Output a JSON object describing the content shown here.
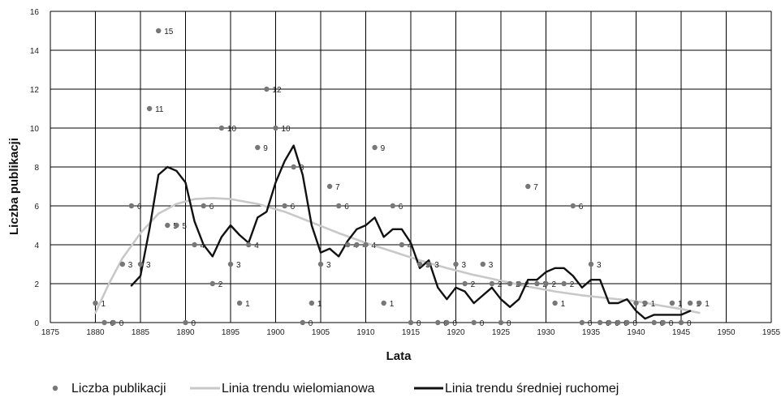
{
  "chart_data": {
    "type": "scatter",
    "xlabel": "Lata",
    "ylabel": "Liczba publikacji",
    "xlim": [
      1875,
      1955
    ],
    "ylim": [
      0,
      16
    ],
    "x_ticks": [
      1875,
      1880,
      1885,
      1890,
      1895,
      1900,
      1905,
      1910,
      1915,
      1920,
      1925,
      1930,
      1935,
      1940,
      1945,
      1950,
      1955
    ],
    "y_ticks": [
      0,
      2,
      4,
      6,
      8,
      10,
      12,
      14,
      16
    ],
    "grid": true,
    "legend_position": "bottom",
    "series": [
      {
        "name": "Liczba publikacji",
        "kind": "points",
        "color": "#777777",
        "points": [
          [
            1880,
            1
          ],
          [
            1881,
            0
          ],
          [
            1882,
            0
          ],
          [
            1883,
            3
          ],
          [
            1884,
            6
          ],
          [
            1885,
            3
          ],
          [
            1886,
            11
          ],
          [
            1887,
            15
          ],
          [
            1888,
            5
          ],
          [
            1889,
            5
          ],
          [
            1890,
            0
          ],
          [
            1891,
            4
          ],
          [
            1892,
            6
          ],
          [
            1893,
            2
          ],
          [
            1894,
            10
          ],
          [
            1895,
            3
          ],
          [
            1896,
            1
          ],
          [
            1897,
            4
          ],
          [
            1898,
            9
          ],
          [
            1899,
            12
          ],
          [
            1900,
            10
          ],
          [
            1901,
            6
          ],
          [
            1902,
            8
          ],
          [
            1903,
            0
          ],
          [
            1904,
            1
          ],
          [
            1905,
            3
          ],
          [
            1906,
            7
          ],
          [
            1907,
            6
          ],
          [
            1908,
            4
          ],
          [
            1909,
            4
          ],
          [
            1910,
            4
          ],
          [
            1911,
            9
          ],
          [
            1912,
            1
          ],
          [
            1913,
            6
          ],
          [
            1914,
            4
          ],
          [
            1915,
            0
          ],
          [
            1916,
            3
          ],
          [
            1917,
            3
          ],
          [
            1918,
            0
          ],
          [
            1919,
            0
          ],
          [
            1920,
            3
          ],
          [
            1921,
            2
          ],
          [
            1922,
            0
          ],
          [
            1923,
            3
          ],
          [
            1924,
            2
          ],
          [
            1925,
            0
          ],
          [
            1926,
            2
          ],
          [
            1927,
            2
          ],
          [
            1928,
            7
          ],
          [
            1929,
            2
          ],
          [
            1930,
            2
          ],
          [
            1931,
            1
          ],
          [
            1932,
            2
          ],
          [
            1933,
            6
          ],
          [
            1934,
            0
          ],
          [
            1935,
            3
          ],
          [
            1936,
            0
          ],
          [
            1937,
            0
          ],
          [
            1938,
            0
          ],
          [
            1939,
            0
          ],
          [
            1940,
            1
          ],
          [
            1941,
            1
          ],
          [
            1942,
            0
          ],
          [
            1943,
            0
          ],
          [
            1944,
            1
          ],
          [
            1945,
            0
          ],
          [
            1946,
            1
          ],
          [
            1947,
            1
          ]
        ]
      },
      {
        "name": "Linia trendu wielomianowa",
        "kind": "line",
        "color": "#c8c8c8",
        "points": [
          [
            1880,
            0.5
          ],
          [
            1881.5,
            2
          ],
          [
            1883,
            3.3
          ],
          [
            1885,
            4.6
          ],
          [
            1887,
            5.6
          ],
          [
            1889,
            6.1
          ],
          [
            1891,
            6.35
          ],
          [
            1893,
            6.4
          ],
          [
            1895,
            6.35
          ],
          [
            1898,
            6.1
          ],
          [
            1901,
            5.7
          ],
          [
            1904,
            5.15
          ],
          [
            1907,
            4.6
          ],
          [
            1910,
            4.1
          ],
          [
            1913,
            3.65
          ],
          [
            1916,
            3.2
          ],
          [
            1919,
            2.8
          ],
          [
            1922,
            2.45
          ],
          [
            1925,
            2.15
          ],
          [
            1928,
            1.85
          ],
          [
            1931,
            1.6
          ],
          [
            1934,
            1.4
          ],
          [
            1937,
            1.25
          ],
          [
            1940,
            1.1
          ],
          [
            1943,
            0.85
          ],
          [
            1945,
            0.7
          ],
          [
            1947,
            0.5
          ]
        ]
      },
      {
        "name": "Linia trendu średniej ruchomej",
        "kind": "line",
        "color": "#111111",
        "points": [
          [
            1884,
            1.9
          ],
          [
            1885,
            2.4
          ],
          [
            1886,
            4.8
          ],
          [
            1887,
            7.6
          ],
          [
            1888,
            8
          ],
          [
            1889,
            7.8
          ],
          [
            1890,
            7.2
          ],
          [
            1891,
            5.2
          ],
          [
            1892,
            4
          ],
          [
            1893,
            3.4
          ],
          [
            1894,
            4.4
          ],
          [
            1895,
            5
          ],
          [
            1896,
            4.5
          ],
          [
            1897,
            4.1
          ],
          [
            1898,
            5.4
          ],
          [
            1899,
            5.7
          ],
          [
            1900,
            7.2
          ],
          [
            1901,
            8.3
          ],
          [
            1902,
            9.1
          ],
          [
            1903,
            7.6
          ],
          [
            1904,
            5
          ],
          [
            1905,
            3.6
          ],
          [
            1906,
            3.8
          ],
          [
            1907,
            3.4
          ],
          [
            1908,
            4.2
          ],
          [
            1909,
            4.8
          ],
          [
            1910,
            5
          ],
          [
            1911,
            5.4
          ],
          [
            1912,
            4.4
          ],
          [
            1913,
            4.8
          ],
          [
            1914,
            4.8
          ],
          [
            1915,
            4.1
          ],
          [
            1916,
            2.8
          ],
          [
            1917,
            3.2
          ],
          [
            1918,
            1.8
          ],
          [
            1919,
            1.2
          ],
          [
            1920,
            1.8
          ],
          [
            1921,
            1.6
          ],
          [
            1922,
            1
          ],
          [
            1923,
            1.4
          ],
          [
            1924,
            1.8
          ],
          [
            1925,
            1.2
          ],
          [
            1926,
            0.8
          ],
          [
            1927,
            1.2
          ],
          [
            1928,
            2.2
          ],
          [
            1929,
            2.2
          ],
          [
            1930,
            2.6
          ],
          [
            1931,
            2.8
          ],
          [
            1932,
            2.8
          ],
          [
            1933,
            2.4
          ],
          [
            1934,
            1.8
          ],
          [
            1935,
            2.2
          ],
          [
            1936,
            2.2
          ],
          [
            1937,
            1
          ],
          [
            1938,
            1
          ],
          [
            1939,
            1.2
          ],
          [
            1940,
            0.6
          ],
          [
            1941,
            0.2
          ],
          [
            1942,
            0.4
          ],
          [
            1943,
            0.4
          ],
          [
            1944,
            0.4
          ],
          [
            1945,
            0.4
          ],
          [
            1946,
            0.6
          ]
        ]
      }
    ]
  }
}
